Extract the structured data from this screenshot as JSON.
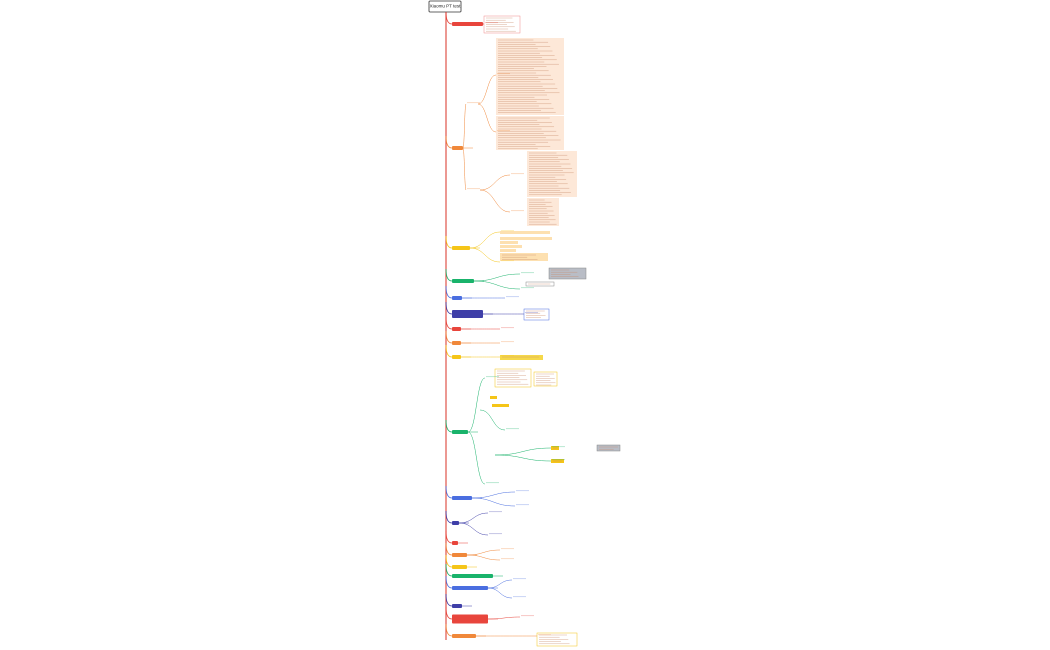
{
  "title": "Xiaomu PT test"
}
